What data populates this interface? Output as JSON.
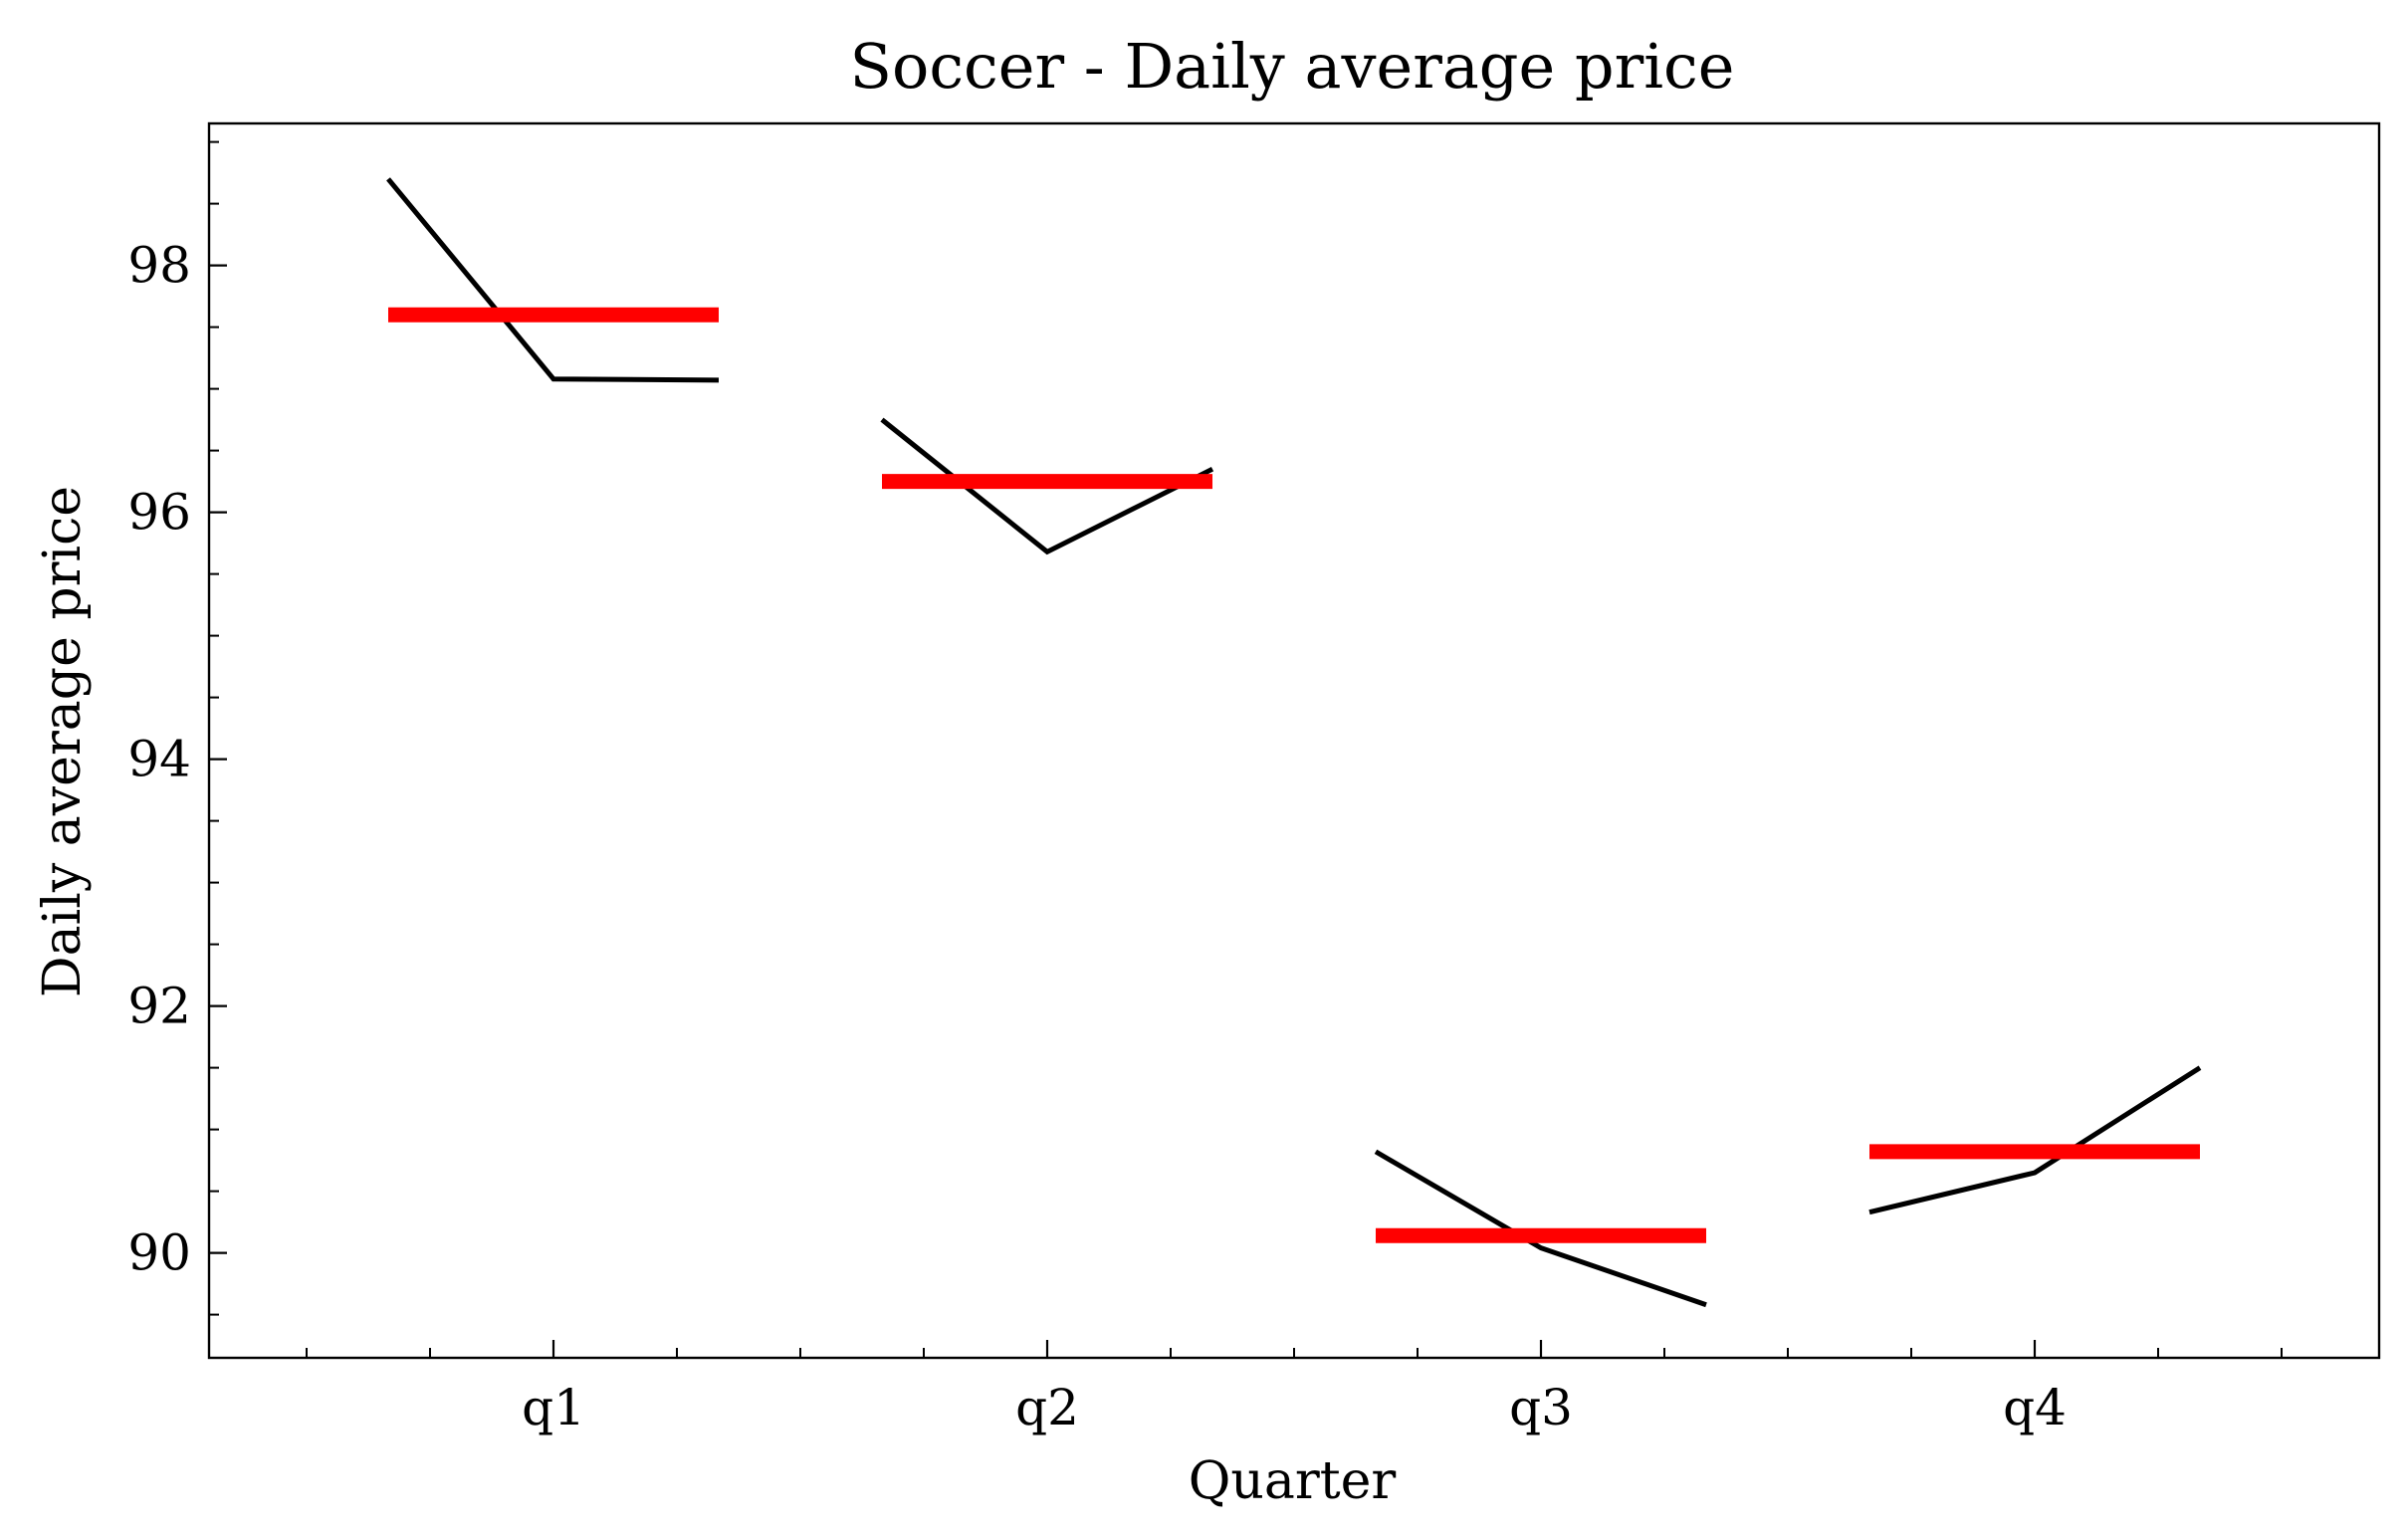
{
  "chart_data": {
    "type": "line",
    "title": "Soccer - Daily average price",
    "xlabel": "Quarter",
    "ylabel": "Daily average price",
    "categories": [
      "q1",
      "q2",
      "q3",
      "q4"
    ],
    "ylim": [
      89.15,
      99.15
    ],
    "yticks": [
      90,
      92,
      94,
      96,
      98
    ],
    "ytick_labels": [
      "90",
      "92",
      "94",
      "96",
      "98"
    ],
    "grid": false,
    "series": [
      {
        "color": "#000000",
        "values": [
          [
            98.7,
            97.08,
            97.07
          ],
          [
            96.75,
            95.68,
            96.35
          ],
          [
            90.82,
            90.04,
            89.58
          ],
          [
            90.33,
            90.65,
            91.5
          ]
        ]
      },
      {
        "color": "#ff0000",
        "values": [
          97.6,
          96.25,
          90.14,
          90.82
        ]
      }
    ]
  }
}
